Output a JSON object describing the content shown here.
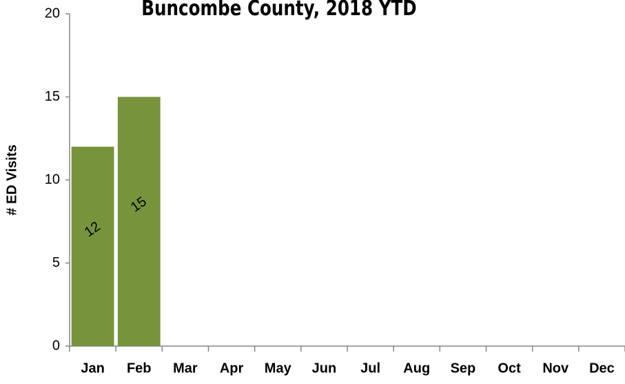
{
  "chart_data": {
    "type": "bar",
    "title": "Buncombe County, 2018 YTD",
    "y_label": "# ED Visits",
    "categories": [
      "Jan",
      "Feb",
      "Mar",
      "Apr",
      "May",
      "Jun",
      "Jul",
      "Aug",
      "Sep",
      "Oct",
      "Nov",
      "Dec"
    ],
    "values": [
      12,
      15,
      null,
      null,
      null,
      null,
      null,
      null,
      null,
      null,
      null,
      null
    ],
    "color": "#77933c",
    "ylim": [
      0,
      20
    ],
    "yticks": [
      0,
      5,
      10,
      15,
      20
    ],
    "grid": false
  }
}
